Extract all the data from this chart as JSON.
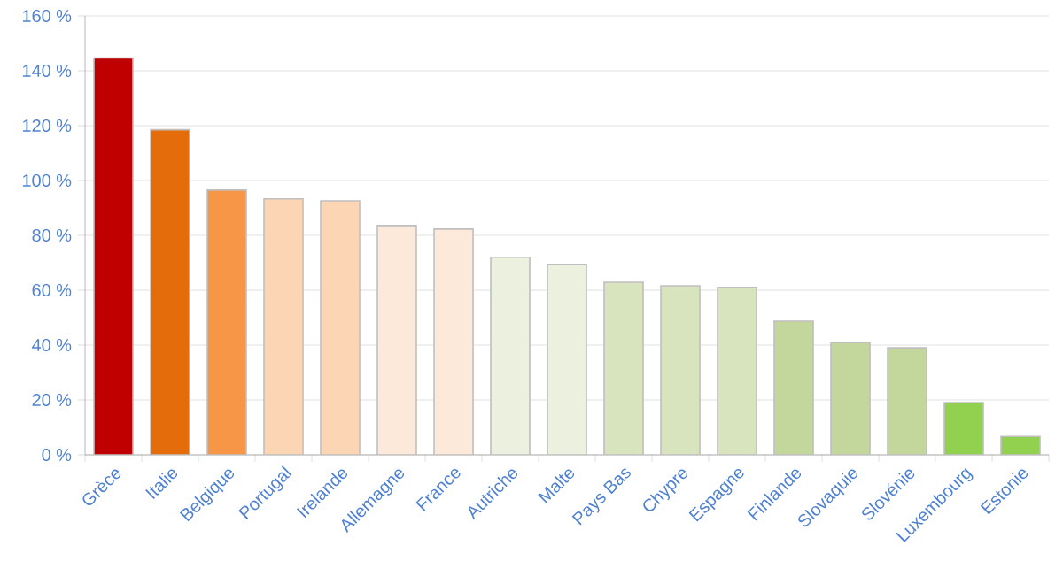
{
  "chart_data": {
    "type": "bar",
    "categories": [
      "Grèce",
      "Italie",
      "Belgique",
      "Portugal",
      "Irelande",
      "Allemagne",
      "France",
      "Autriche",
      "Malte",
      "Pays Bas",
      "Chypre",
      "Espagne",
      "Finlande",
      "Slovaquie",
      "Slovénie",
      "Luxembourg",
      "Estonie"
    ],
    "values": [
      144.7,
      118.5,
      96.5,
      93.3,
      92.6,
      83.6,
      82.3,
      72.0,
      69.4,
      62.9,
      61.6,
      61.0,
      48.7,
      40.9,
      39.0,
      19.0,
      6.7
    ],
    "colors": [
      "#c00000",
      "#e46c0a",
      "#f79646",
      "#fcd5b5",
      "#fcd5b5",
      "#fde9d9",
      "#fde9d9",
      "#ebf1de",
      "#ebf1de",
      "#d7e4bd",
      "#d7e4bd",
      "#d7e4bd",
      "#c3d69b",
      "#c3d69b",
      "#c3d69b",
      "#92d050",
      "#92d050"
    ],
    "ylim": [
      0,
      160
    ],
    "yticks": [
      {
        "value": 0,
        "label": "0 %"
      },
      {
        "value": 20,
        "label": "20 %"
      },
      {
        "value": 40,
        "label": "40 %"
      },
      {
        "value": 60,
        "label": "60 %"
      },
      {
        "value": 80,
        "label": "80 %"
      },
      {
        "value": 100,
        "label": "100 %"
      },
      {
        "value": 120,
        "label": "120 %"
      },
      {
        "value": 140,
        "label": "140 %"
      },
      {
        "value": 160,
        "label": "160 %"
      }
    ],
    "grid": "y"
  }
}
